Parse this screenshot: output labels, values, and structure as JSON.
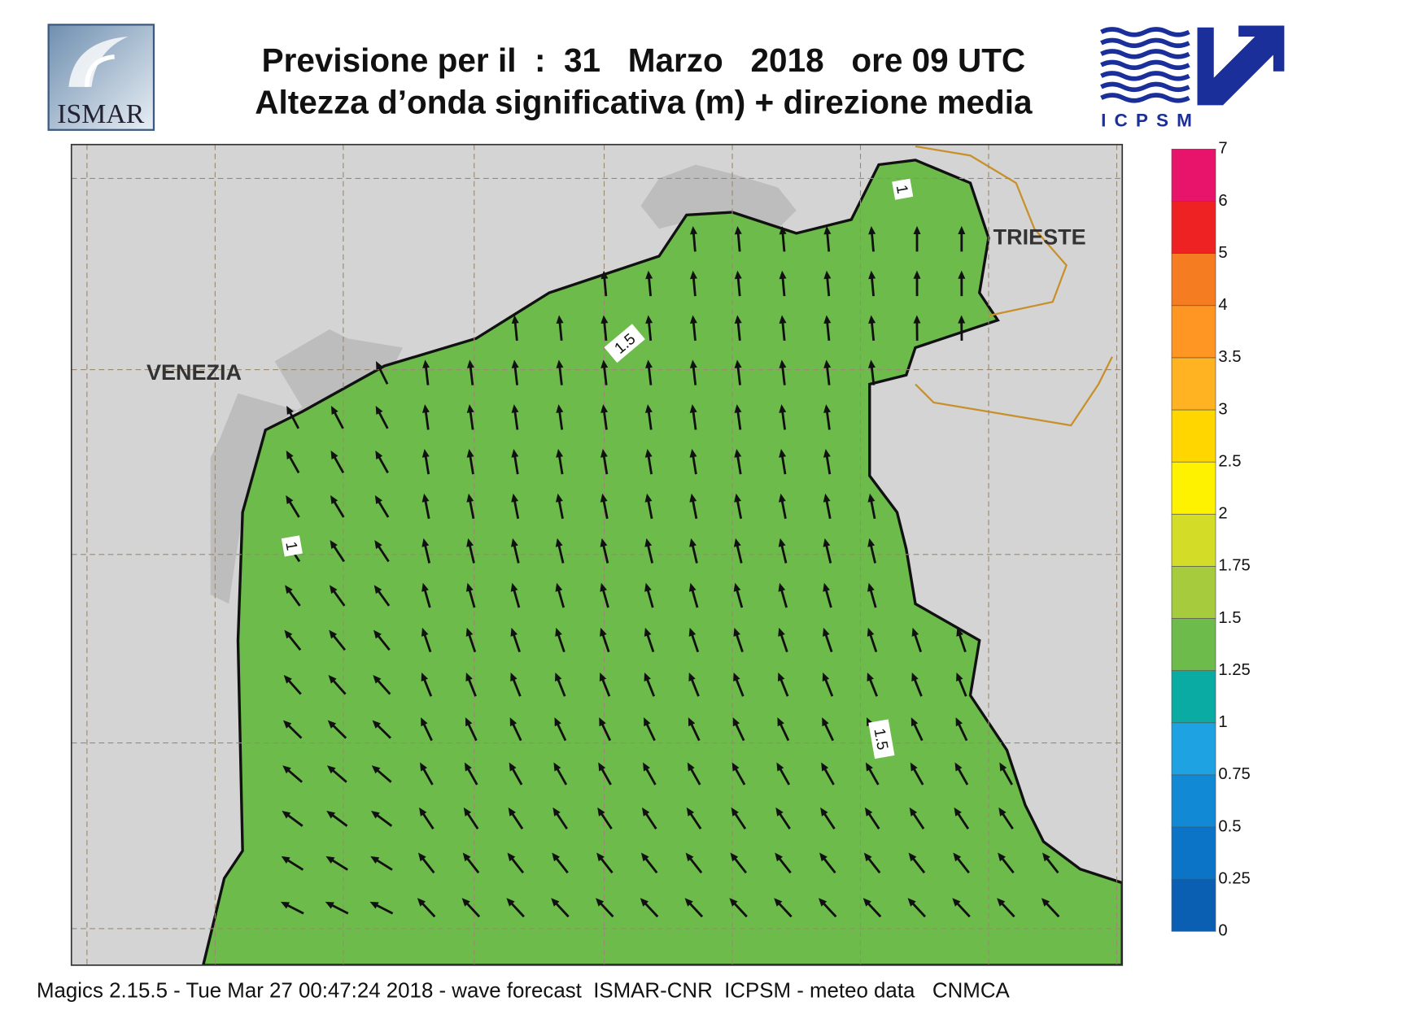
{
  "header": {
    "title_line1": "Previsione per il  :  31   Marzo   2018   ore 09 UTC",
    "title_line2": "Altezza d’onda significativa (m) + direzione media",
    "logo_left": "ISMAR",
    "logo_right": "ICPSM"
  },
  "map": {
    "cities": [
      "VENEZIA",
      "TRIESTE"
    ],
    "contour_labels": [
      "1.5",
      "1.5",
      "1",
      "1"
    ]
  },
  "colorbar": {
    "levels": [
      0,
      0.25,
      0.5,
      0.75,
      1,
      1.25,
      1.5,
      1.75,
      2,
      2.5,
      3,
      3.5,
      4,
      5,
      6,
      7
    ],
    "colors": [
      "#0b5fb3",
      "#0c74c6",
      "#1289d4",
      "#1ea2e2",
      "#0aaba2",
      "#6cbb4b",
      "#a6cb3c",
      "#d3dc26",
      "#fff200",
      "#ffd600",
      "#ffb322",
      "#ff9624",
      "#f57c20",
      "#ee2222",
      "#e8146c"
    ]
  },
  "footer": "Magics 2.15.5 - Tue Mar 27 00:47:24 2018 - wave forecast  ISMAR-CNR  ICPSM - meteo data   CNMCA"
}
